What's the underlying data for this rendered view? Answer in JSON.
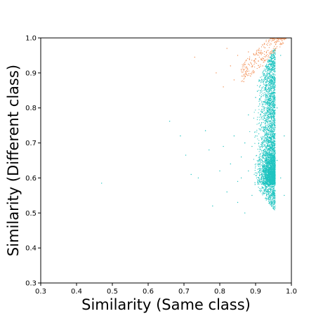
{
  "chart_data": {
    "type": "scatter",
    "xlabel": "Similarity (Same class)",
    "ylabel": "Similarity (Different class)",
    "xlim": [
      0.3,
      1.0
    ],
    "ylim": [
      0.3,
      1.0
    ],
    "x_ticks": [
      "0.3",
      "0.4",
      "0.5",
      "0.6",
      "0.7",
      "0.8",
      "0.9",
      "1.0"
    ],
    "y_ticks": [
      "0.3",
      "0.4",
      "0.5",
      "0.6",
      "0.7",
      "0.8",
      "0.9",
      "1.0"
    ],
    "grid": false,
    "legend": "none",
    "series": [
      {
        "color": "#1fc4c0",
        "points": [
          [
            0.47,
            0.585
          ],
          [
            0.66,
            0.762
          ],
          [
            0.69,
            0.72
          ],
          [
            0.705,
            0.665
          ],
          [
            0.72,
            0.61
          ],
          [
            0.74,
            0.6
          ],
          [
            0.76,
            0.735
          ],
          [
            0.77,
            0.68
          ],
          [
            0.78,
            0.52
          ],
          [
            0.8,
            0.62
          ],
          [
            0.81,
            0.69
          ],
          [
            0.82,
            0.56
          ],
          [
            0.83,
            0.64
          ],
          [
            0.84,
            0.72
          ],
          [
            0.85,
            0.59
          ],
          [
            0.85,
            0.53
          ],
          [
            0.86,
            0.6
          ],
          [
            0.86,
            0.66
          ],
          [
            0.87,
            0.7
          ],
          [
            0.87,
            0.5
          ],
          [
            0.88,
            0.62
          ],
          [
            0.88,
            0.78
          ],
          [
            0.89,
            0.69
          ],
          [
            0.89,
            0.55
          ],
          [
            0.9,
            0.72
          ],
          [
            0.9,
            0.83
          ],
          [
            0.91,
            0.64
          ],
          [
            0.91,
            0.88
          ],
          [
            0.92,
            0.7
          ],
          [
            0.92,
            0.9
          ],
          [
            0.93,
            0.66
          ],
          [
            0.93,
            0.92
          ],
          [
            0.94,
            0.62
          ],
          [
            0.94,
            0.75
          ],
          [
            0.95,
            0.68
          ],
          [
            0.95,
            0.93
          ],
          [
            0.96,
            0.65
          ],
          [
            0.96,
            0.8
          ],
          [
            0.97,
            0.6
          ],
          [
            0.97,
            0.95
          ],
          [
            0.98,
            0.55
          ],
          [
            0.98,
            0.72
          ]
        ]
      },
      {
        "color": "#f28c50",
        "points": [
          [
            0.73,
            0.945
          ],
          [
            0.79,
            0.9
          ],
          [
            0.81,
            0.86
          ],
          [
            0.82,
            0.97
          ],
          [
            0.83,
            0.92
          ],
          [
            0.84,
            0.88
          ],
          [
            0.85,
            0.95
          ],
          [
            0.86,
            0.91
          ],
          [
            0.87,
            0.93
          ],
          [
            0.88,
            0.96
          ],
          [
            0.89,
            0.9
          ],
          [
            0.9,
            0.94
          ],
          [
            0.91,
            0.97
          ],
          [
            0.92,
            0.92
          ],
          [
            0.93,
            0.95
          ],
          [
            0.94,
            0.98
          ],
          [
            0.95,
            0.96
          ],
          [
            0.96,
            0.99
          ],
          [
            0.97,
            0.985
          ],
          [
            0.98,
            0.995
          ]
        ]
      }
    ]
  }
}
